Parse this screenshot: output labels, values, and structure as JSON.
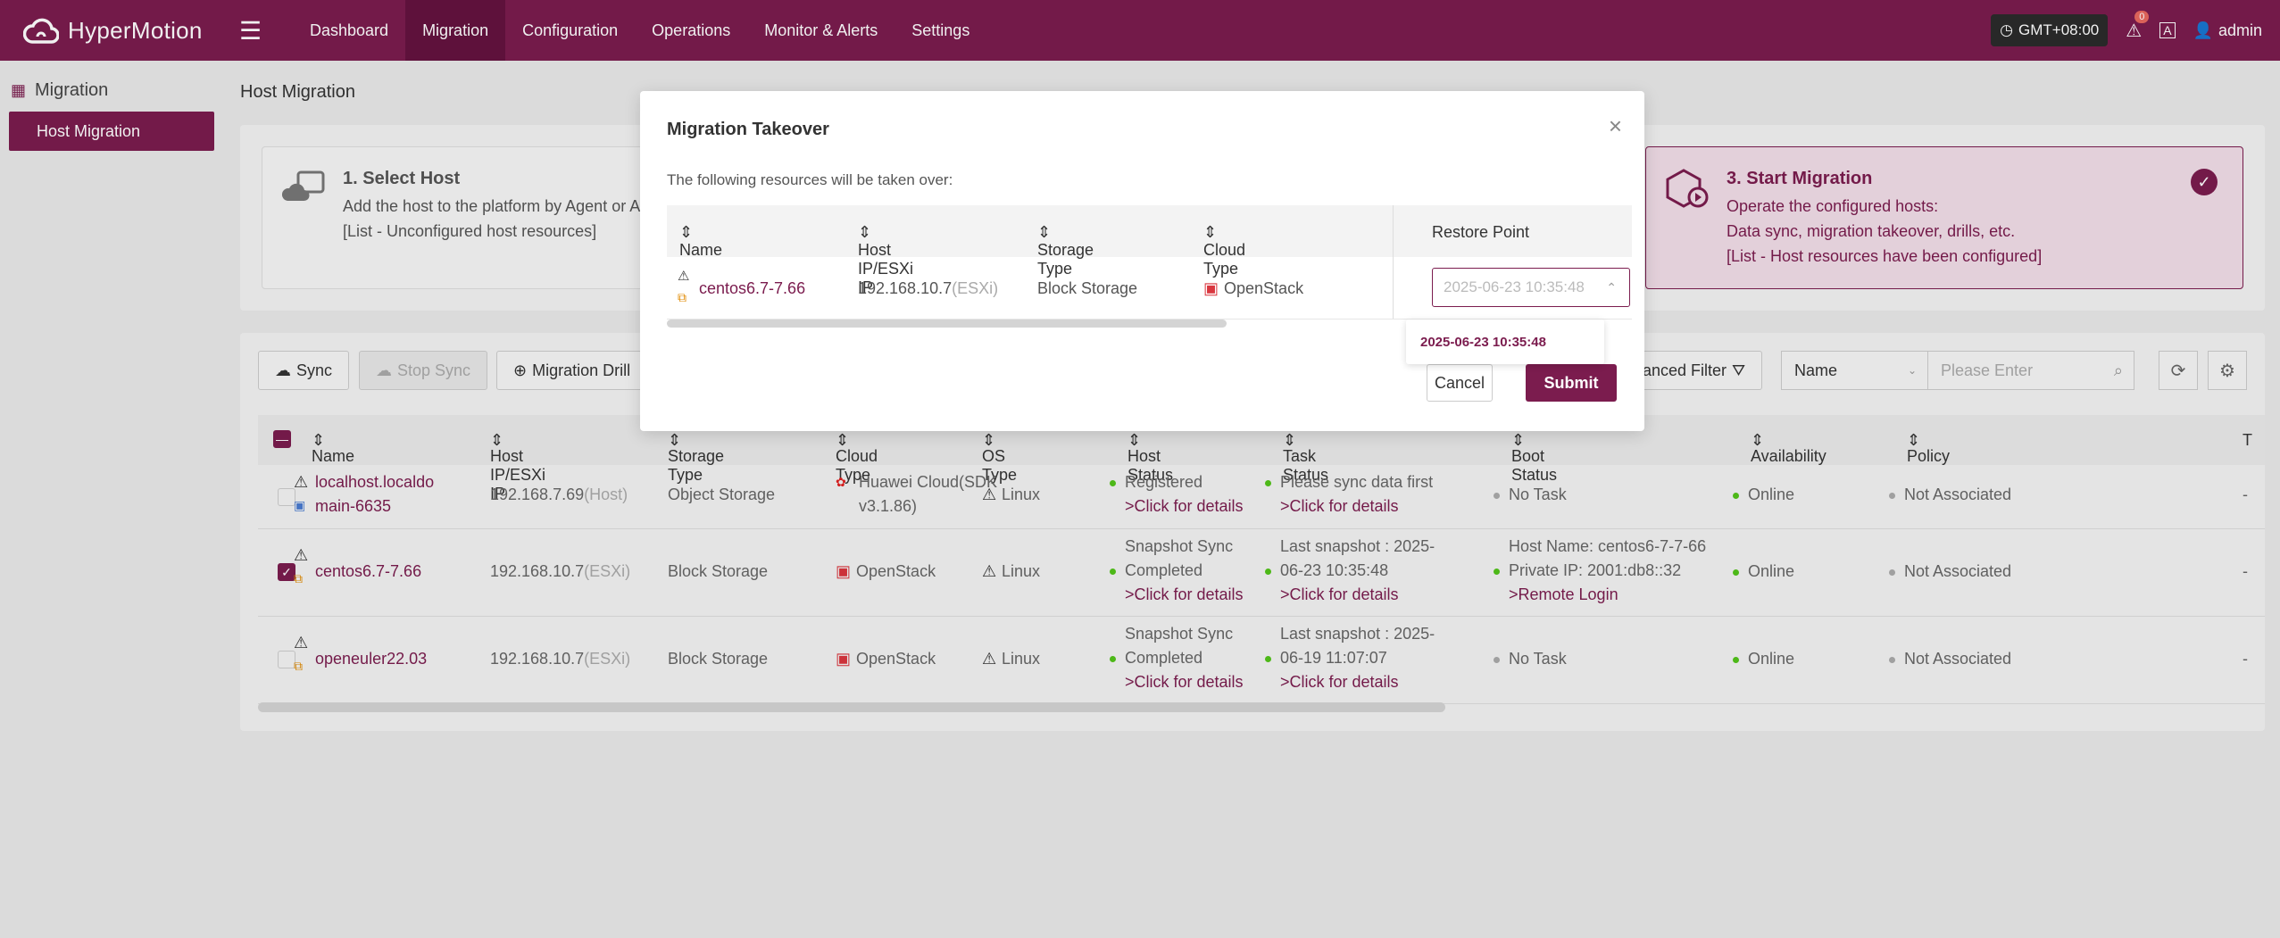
{
  "app": {
    "name": "HyperMotion"
  },
  "nav": [
    "Dashboard",
    "Migration",
    "Configuration",
    "Operations",
    "Monitor & Alerts",
    "Settings"
  ],
  "header": {
    "timezone": "GMT+08:00",
    "alert_count": "0",
    "user": "admin"
  },
  "sidebar": {
    "title": "Migration",
    "items": [
      {
        "label": "Host Migration"
      }
    ]
  },
  "page": {
    "title": "Host Migration"
  },
  "steps": [
    {
      "title": "1. Select Host",
      "line1": "Add the host to the platform by Agent or A",
      "line2": "[List - Unconfigured host resources]"
    },
    {
      "title": "3. Start Migration",
      "line1": "Operate the configured hosts:",
      "line2": "Data sync, migration takeover, drills, etc.",
      "line3": "[List - Host resources have been configured]"
    }
  ],
  "toolbar": {
    "sync": "Sync",
    "stop_sync": "Stop Sync",
    "migration_drill": "Migration Drill",
    "advanced_filter": "vanced Filter",
    "filter_field": "Name",
    "search_placeholder": "Please Enter"
  },
  "table": {
    "headers": [
      "Name",
      "Host IP/ESXi IP",
      "Storage Type",
      "Cloud Type",
      "OS Type",
      "Host Status",
      "Task Status",
      "Boot Status",
      "Availability",
      "Policy",
      "T"
    ],
    "rows": [
      {
        "name1": "localhost.localdo",
        "name2": "main-6635",
        "ip": "192.168.7.69",
        "ip_suffix": "(Host)",
        "storage": "Object Storage",
        "cloud1": "Huawei Cloud(SDK",
        "cloud2": "v3.1.86)",
        "os": "Linux",
        "host_status1": "Registered",
        "host_status_link": ">Click for details",
        "task1": "Please sync data first",
        "task_link": ">Click for details",
        "boot1": "No Task",
        "availability": "Online",
        "policy": "Not Associated",
        "extra": "-",
        "checked": false
      },
      {
        "name1": "centos6.7-7.66",
        "ip": "192.168.10.7",
        "ip_suffix": "(ESXi)",
        "storage": "Block Storage",
        "cloud1": "OpenStack",
        "os": "Linux",
        "host_status1": "Snapshot Sync",
        "host_status2": "Completed",
        "host_status_link": ">Click for details",
        "task1": "Last snapshot : 2025-",
        "task2": "06-23 10:35:48",
        "task_link": ">Click for details",
        "boot1": "Host Name: centos6-7-7-66",
        "boot2": "Private IP: 2001:db8::32",
        "boot_link": ">Remote Login",
        "availability": "Online",
        "policy": "Not Associated",
        "extra": "-",
        "checked": true
      },
      {
        "name1": "openeuler22.03",
        "ip": "192.168.10.7",
        "ip_suffix": "(ESXi)",
        "storage": "Block Storage",
        "cloud1": "OpenStack",
        "os": "Linux",
        "host_status1": "Snapshot Sync",
        "host_status2": "Completed",
        "host_status_link": ">Click for details",
        "task1": "Last snapshot : 2025-",
        "task2": "06-19 11:07:07",
        "task_link": ">Click for details",
        "boot1": "No Task",
        "availability": "Online",
        "policy": "Not Associated",
        "extra": "-",
        "checked": false
      }
    ]
  },
  "modal": {
    "title": "Migration Takeover",
    "description": "The following resources will be taken over:",
    "headers": [
      "Name",
      "Host IP/ESXi IP",
      "Storage Type",
      "Cloud Type",
      "Restore Point"
    ],
    "row": {
      "name": "centos6.7-7.66",
      "ip": "192.168.10.7",
      "ip_suffix": "(ESXi)",
      "storage": "Block Storage",
      "cloud": "OpenStack",
      "restore_point": "2025-06-23 10:35:48"
    },
    "dropdown_option": "2025-06-23 10:35:48",
    "cancel": "Cancel",
    "submit": "Submit"
  },
  "colors": {
    "brand": "#7b1c4e",
    "online": "#52c41a",
    "openstack": "#d9363e",
    "huawei": "#e02020"
  }
}
